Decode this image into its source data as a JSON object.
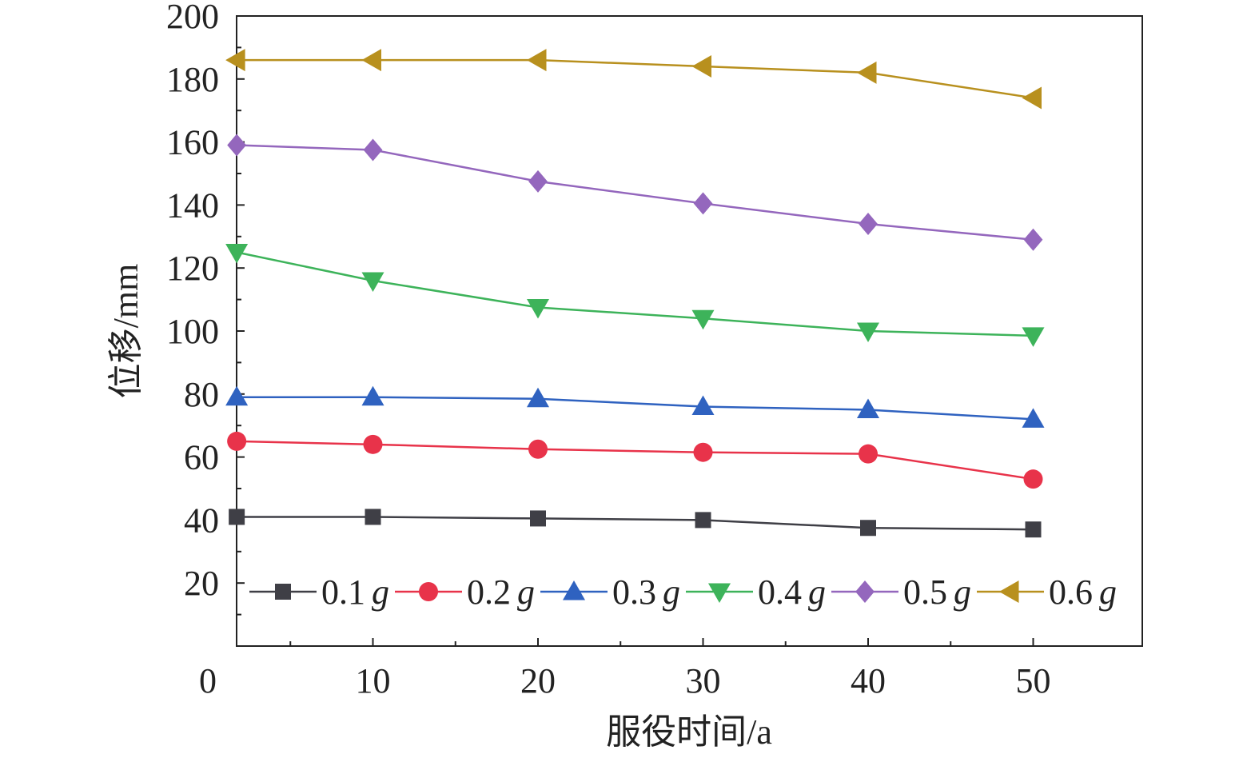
{
  "chart_data": {
    "type": "line",
    "xlabel": "服役时间/a",
    "ylabel": "位移/mm",
    "xlim": [
      0,
      55
    ],
    "ylim": [
      0,
      200
    ],
    "xticks": [
      0,
      10,
      20,
      30,
      40,
      50
    ],
    "yticks": [
      20,
      40,
      60,
      80,
      100,
      120,
      140,
      160,
      180,
      200
    ],
    "grid": false,
    "legend_position": "bottom-inside",
    "x": [
      0,
      10,
      20,
      30,
      40,
      50
    ],
    "series": [
      {
        "name": "0.1",
        "unit_symbol": "g",
        "marker": "square",
        "color": "#3f3f46",
        "values": [
          41,
          41,
          40.5,
          40,
          37.5,
          37
        ]
      },
      {
        "name": "0.2",
        "unit_symbol": "g",
        "marker": "circle",
        "color": "#e8334a",
        "values": [
          65,
          64,
          62.5,
          61.5,
          61,
          53
        ]
      },
      {
        "name": "0.3",
        "unit_symbol": "g",
        "marker": "triangle-up",
        "color": "#2f62c0",
        "values": [
          79,
          79,
          78.5,
          76,
          75,
          72
        ]
      },
      {
        "name": "0.4",
        "unit_symbol": "g",
        "marker": "triangle-down",
        "color": "#3db35a",
        "values": [
          125,
          116,
          107.5,
          104,
          100,
          98.5
        ]
      },
      {
        "name": "0.5",
        "unit_symbol": "g",
        "marker": "diamond",
        "color": "#9467bd",
        "values": [
          159,
          157.5,
          147.5,
          140.5,
          134,
          129
        ]
      },
      {
        "name": "0.6",
        "unit_symbol": "g",
        "marker": "triangle-left",
        "color": "#b8901e",
        "values": [
          186,
          186,
          186,
          184,
          182,
          174
        ]
      }
    ]
  }
}
